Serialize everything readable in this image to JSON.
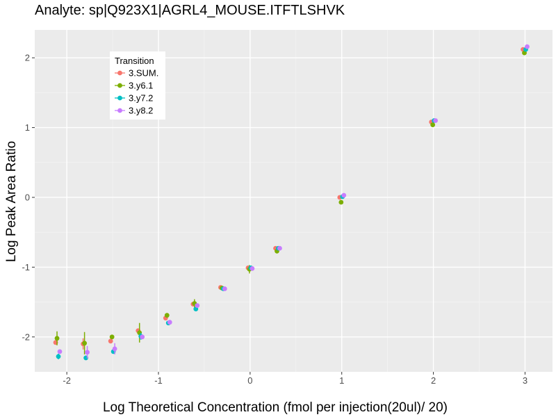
{
  "chart_data": {
    "type": "scatter",
    "title": "Analyte: sp|Q923X1|AGRL4_MOUSE.ITFTLSHVK",
    "xlabel": "Log Theoretical Concentration (fmol per injection(20ul)/ 20)",
    "ylabel": "Log Peak Area Ratio",
    "xlim": [
      -2.35,
      3.3
    ],
    "ylim": [
      -2.5,
      2.4
    ],
    "x_ticks": [
      -2,
      -1,
      0,
      1,
      2,
      3
    ],
    "y_ticks": [
      -2,
      -1,
      0,
      1,
      2
    ],
    "x_tick_labels": [
      "-2",
      "-1",
      "0",
      "1",
      "2",
      "3"
    ],
    "y_tick_labels": [
      "-2",
      "-1",
      "0",
      "1",
      "2"
    ],
    "legend": {
      "title": "Transition",
      "position": "top-left"
    },
    "x": [
      -2.1,
      -1.8,
      -1.5,
      -1.2,
      -0.9,
      -0.6,
      -0.3,
      0,
      0.3,
      1,
      2,
      3
    ],
    "series": [
      {
        "name": "3.SUM.",
        "color": "#F8766D",
        "dodge": -0.022,
        "values": [
          -2.08,
          -2.1,
          -2.06,
          -1.91,
          -1.73,
          -1.53,
          -1.29,
          -1.01,
          -0.73,
          0.0,
          1.08,
          2.12
        ],
        "err": [
          0.02,
          0.08,
          0,
          0.03,
          0,
          0,
          0,
          0,
          0,
          0,
          0,
          0
        ]
      },
      {
        "name": "3.y6.1",
        "color": "#7CAE00",
        "dodge": -0.007,
        "values": [
          -2.02,
          -2.09,
          -2.0,
          -1.94,
          -1.69,
          -1.52,
          -1.3,
          -1.03,
          -0.77,
          -0.07,
          1.04,
          2.07
        ],
        "err": [
          0.1,
          0.16,
          0,
          0.14,
          0,
          0.06,
          0,
          0.06,
          0.02,
          0,
          0,
          0
        ]
      },
      {
        "name": "3.y7.2",
        "color": "#00BFC4",
        "dodge": 0.008,
        "values": [
          -2.28,
          -2.3,
          -2.21,
          -1.99,
          -1.8,
          -1.6,
          -1.31,
          -1.01,
          -0.73,
          0.01,
          1.1,
          2.12
        ],
        "err": [
          0.04,
          0,
          0,
          0.05,
          0,
          0,
          0,
          0,
          0,
          0,
          0,
          0
        ]
      },
      {
        "name": "3.y8.2",
        "color": "#C77CFF",
        "dodge": 0.023,
        "values": [
          -2.21,
          -2.22,
          -2.17,
          -2.0,
          -1.79,
          -1.55,
          -1.31,
          -1.02,
          -0.73,
          0.03,
          1.1,
          2.16
        ],
        "err": [
          0.02,
          0.09,
          0.08,
          0,
          0,
          0,
          0,
          0,
          0,
          0,
          0,
          0
        ]
      }
    ]
  }
}
